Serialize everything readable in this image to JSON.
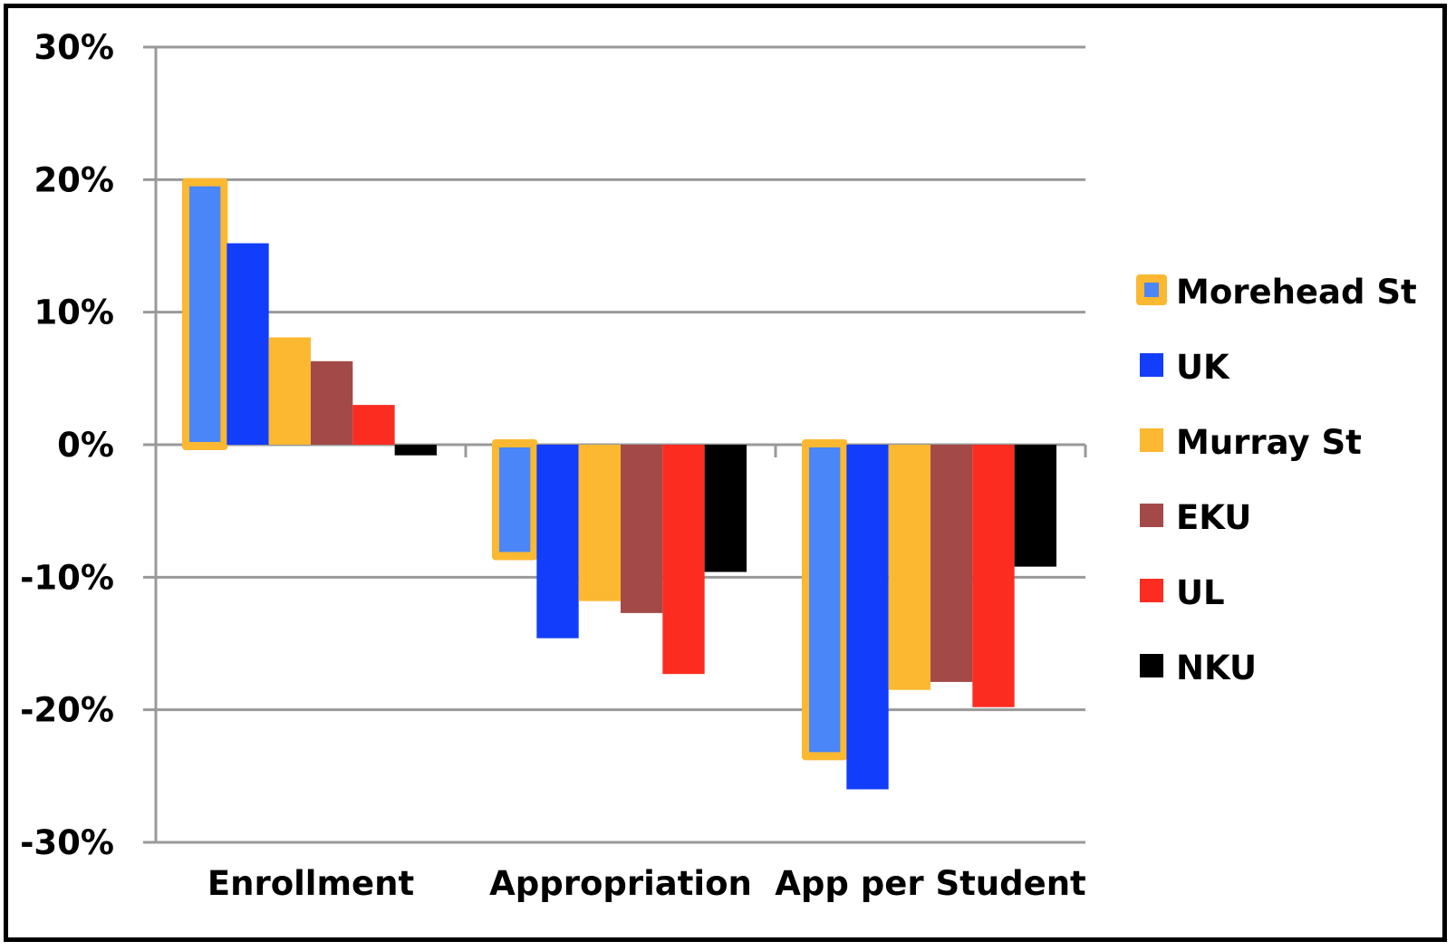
{
  "chart_data": {
    "type": "bar",
    "title": "",
    "xlabel": "",
    "ylabel": "",
    "categories": [
      "Enrollment",
      "Appropriation",
      "App per Student"
    ],
    "ylim": [
      -30,
      30
    ],
    "yticks": [
      30,
      20,
      10,
      0,
      -10,
      -20,
      -30
    ],
    "ytick_labels": [
      "30%",
      "20%",
      "10%",
      "0%",
      "-10%",
      "-20%",
      "-30%"
    ],
    "grid": true,
    "legend_position": "right",
    "highlighted_series": "Morehead St",
    "series": [
      {
        "name": "Morehead St",
        "color": "#4A86F7",
        "outline": "#FBB830",
        "values": [
          19.7,
          -8.3,
          -23.4
        ]
      },
      {
        "name": "UK",
        "color": "#113DFB",
        "values": [
          15.2,
          -14.6,
          -26.0
        ]
      },
      {
        "name": "Murray St",
        "color": "#FBB830",
        "values": [
          8.1,
          -11.8,
          -18.5
        ]
      },
      {
        "name": "EKU",
        "color": "#A34A48",
        "values": [
          6.3,
          -12.7,
          -17.9
        ]
      },
      {
        "name": "UL",
        "color": "#FC2C20",
        "values": [
          3.0,
          -17.3,
          -19.8
        ]
      },
      {
        "name": "NKU",
        "color": "#000000",
        "values": [
          -0.8,
          -9.6,
          -9.2
        ]
      }
    ]
  }
}
